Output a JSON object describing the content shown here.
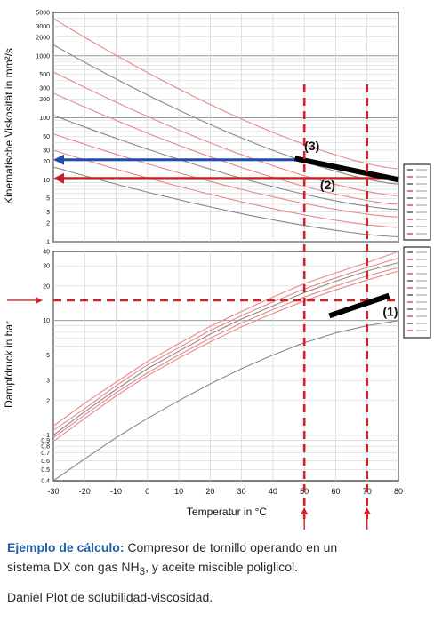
{
  "chart_data": [
    {
      "type": "line",
      "panel": "upper",
      "ylabel": "Kinematische Viskosität in mm²/s",
      "yscale": "log",
      "ylim": [
        1,
        5000
      ],
      "yticks": [
        "5000",
        "3000",
        "2000",
        "1000",
        "500",
        "300",
        "200",
        "100",
        "50",
        "30",
        "20",
        "10",
        "5",
        "3",
        "2",
        "1"
      ],
      "xlim": [
        -30,
        80
      ],
      "grid": true,
      "series": [
        {
          "values": [
            [
              -30,
              4000
            ],
            [
              80,
              15
            ]
          ],
          "color": "#e88888"
        },
        {
          "values": [
            [
              -30,
              1500
            ],
            [
              80,
              8.5
            ]
          ],
          "color": "#888888"
        },
        {
          "values": [
            [
              -30,
              550
            ],
            [
              80,
              5.5
            ]
          ],
          "color": "#e88888"
        },
        {
          "values": [
            [
              -30,
              250
            ],
            [
              80,
              4
            ]
          ],
          "color": "#e88888"
        },
        {
          "values": [
            [
              -30,
              110
            ],
            [
              80,
              3.3
            ]
          ],
          "color": "#888888"
        },
        {
          "values": [
            [
              -30,
              55
            ],
            [
              80,
              2.5
            ]
          ],
          "color": "#e88888"
        },
        {
          "values": [
            [
              -30,
              30
            ],
            [
              80,
              1.7
            ]
          ],
          "color": "#e88888"
        },
        {
          "values": [
            [
              -30,
              16
            ],
            [
              80,
              1.2
            ]
          ],
          "color": "#888888"
        }
      ],
      "markers": [
        {
          "label": "(3)",
          "x": 50,
          "y": 30
        },
        {
          "label": "(2)",
          "x": 55,
          "y": 7
        }
      ],
      "annotations": [
        {
          "type": "arrow",
          "color": "#1f4fa8",
          "from": [
            47,
            21
          ],
          "to": [
            -30,
            21
          ]
        },
        {
          "type": "arrow",
          "color": "#c8202a",
          "from": [
            80,
            10.5
          ],
          "to": [
            -30,
            10.5
          ]
        },
        {
          "type": "thick-line",
          "color": "#000000",
          "from": [
            47,
            22
          ],
          "to": [
            80,
            10
          ]
        },
        {
          "type": "vline-dashed",
          "color": "#d42028",
          "x": 50
        },
        {
          "type": "vline-dashed",
          "color": "#d42028",
          "x": 70
        }
      ]
    },
    {
      "type": "line",
      "panel": "lower",
      "ylabel": "Dampfdruck in bar",
      "yscale": "log",
      "ylim": [
        0.4,
        40
      ],
      "yticks": [
        "40",
        "30",
        "20",
        "10",
        "5",
        "3",
        "2",
        "1",
        "0.9",
        "0.8",
        "0.7",
        "0.6",
        "0.5",
        "0.4"
      ],
      "xlabel": "Temperatur in °C",
      "xticks": [
        -30,
        -20,
        -10,
        0,
        10,
        20,
        30,
        40,
        50,
        60,
        70,
        80
      ],
      "xlim": [
        -30,
        80
      ],
      "grid": true,
      "series": [
        {
          "values": [
            [
              -30,
              1.2
            ],
            [
              -20,
              1.9
            ],
            [
              -10,
              2.9
            ],
            [
              0,
              4.4
            ],
            [
              10,
              6.3
            ],
            [
              20,
              8.9
            ],
            [
              30,
              12
            ],
            [
              40,
              16
            ],
            [
              50,
              21
            ],
            [
              60,
              26
            ],
            [
              70,
              32
            ],
            [
              80,
              40
            ]
          ],
          "color": "#e88888"
        },
        {
          "values": [
            [
              -30,
              1.1
            ],
            [
              -20,
              1.7
            ],
            [
              -10,
              2.7
            ],
            [
              0,
              4.1
            ],
            [
              10,
              5.8
            ],
            [
              20,
              8.2
            ],
            [
              30,
              11
            ],
            [
              40,
              14.5
            ],
            [
              50,
              18.8
            ],
            [
              60,
              23.5
            ],
            [
              70,
              29
            ],
            [
              80,
              35
            ]
          ],
          "color": "#e88888"
        },
        {
          "values": [
            [
              -30,
              1.0
            ],
            [
              -20,
              1.6
            ],
            [
              -10,
              2.5
            ],
            [
              0,
              3.8
            ],
            [
              10,
              5.4
            ],
            [
              20,
              7.6
            ],
            [
              30,
              10.3
            ],
            [
              40,
              13.4
            ],
            [
              50,
              17.5
            ],
            [
              60,
              22
            ],
            [
              70,
              27
            ],
            [
              80,
              32
            ]
          ],
          "color": "#888888"
        },
        {
          "values": [
            [
              -30,
              0.95
            ],
            [
              -20,
              1.5
            ],
            [
              -10,
              2.35
            ],
            [
              0,
              3.5
            ],
            [
              10,
              5.0
            ],
            [
              20,
              7.0
            ],
            [
              30,
              9.5
            ],
            [
              40,
              12.5
            ],
            [
              50,
              16
            ],
            [
              60,
              20
            ],
            [
              70,
              24.5
            ],
            [
              80,
              29
            ]
          ],
          "color": "#e88888"
        },
        {
          "values": [
            [
              -30,
              0.88
            ],
            [
              -20,
              1.4
            ],
            [
              -10,
              2.2
            ],
            [
              0,
              3.3
            ],
            [
              10,
              4.7
            ],
            [
              20,
              6.5
            ],
            [
              30,
              8.8
            ],
            [
              40,
              11.5
            ],
            [
              50,
              14.8
            ],
            [
              60,
              18.5
            ],
            [
              70,
              22.5
            ],
            [
              80,
              27
            ]
          ],
          "color": "#e88888"
        },
        {
          "values": [
            [
              -30,
              0.4
            ],
            [
              -20,
              0.62
            ],
            [
              -10,
              0.95
            ],
            [
              0,
              1.4
            ],
            [
              10,
              2.0
            ],
            [
              20,
              2.8
            ],
            [
              30,
              3.8
            ],
            [
              40,
              5.0
            ],
            [
              50,
              6.4
            ],
            [
              60,
              7.8
            ],
            [
              70,
              9.0
            ],
            [
              80,
              10
            ]
          ],
          "color": "#888888"
        }
      ],
      "markers": [
        {
          "label": "(1)",
          "x": 75,
          "y": 11
        }
      ],
      "annotations": [
        {
          "type": "hline-dashed",
          "color": "#d42028",
          "y": 15
        },
        {
          "type": "thick-line",
          "color": "#000000",
          "from": [
            58,
            11
          ],
          "to": [
            77,
            16.5
          ]
        }
      ]
    }
  ],
  "caption": {
    "bold": "Ejemplo de cálculo:",
    "line1_rest": " Compresor de tornillo operando en un",
    "line2_pre": "sistema DX con gas NH",
    "line2_sub": "3",
    "line2_post": ", y aceite miscible poliglicol.",
    "line3": "Daniel Plot de solubilidad-viscosidad."
  },
  "colors": {
    "red_dash": "#d42028",
    "blue_arrow": "#1f4fa8",
    "red_arrow": "#c8202a",
    "pink_curve": "#e88888",
    "grey_curve": "#888888",
    "caption_accent": "#1f5fa8"
  }
}
